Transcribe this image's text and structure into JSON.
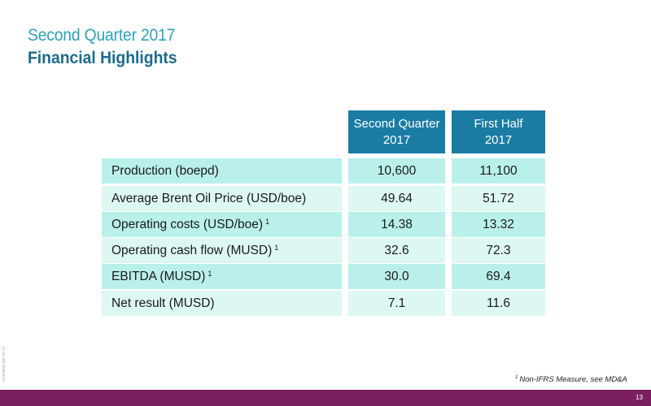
{
  "header": {
    "title_line1": "Second Quarter 2017",
    "title_line2": "Financial Highlights"
  },
  "table": {
    "columns": [
      {
        "line1": "Second Quarter",
        "line2": "2017"
      },
      {
        "line1": "First Half",
        "line2": "2017"
      }
    ],
    "rows": [
      {
        "label": "Production (boepd)",
        "footnote": "",
        "q2": "10,600",
        "h1": "11,100"
      },
      {
        "label": "Average Brent Oil Price (USD/boe)",
        "footnote": "",
        "q2": "49.64",
        "h1": "51.72"
      },
      {
        "label": "Operating costs (USD/boe)",
        "footnote": "1",
        "q2": "14.38",
        "h1": "13.32"
      },
      {
        "label": "Operating cash flow (MUSD)",
        "footnote": "1",
        "q2": "32.6",
        "h1": "72.3"
      },
      {
        "label": "EBITDA (MUSD)",
        "footnote": "1",
        "q2": "30.0",
        "h1": "69.4"
      },
      {
        "label": "Net result (MUSD)",
        "footnote": "",
        "q2": "7.1",
        "h1": "11.6"
      }
    ]
  },
  "footnote": {
    "marker": "1",
    "text": "Non-IFRS Measure, see MD&A"
  },
  "side_code": "NCF06031 p02 07.17",
  "footer": {
    "page_number": "13"
  },
  "colors": {
    "title_light": "#2aa3bd",
    "title_dark": "#1b6b8e",
    "header_bg": "#1a7ca3",
    "row_dark": "#b9f0ea",
    "row_light": "#ddf7f3",
    "footer_bar": "#7c1f5f"
  }
}
